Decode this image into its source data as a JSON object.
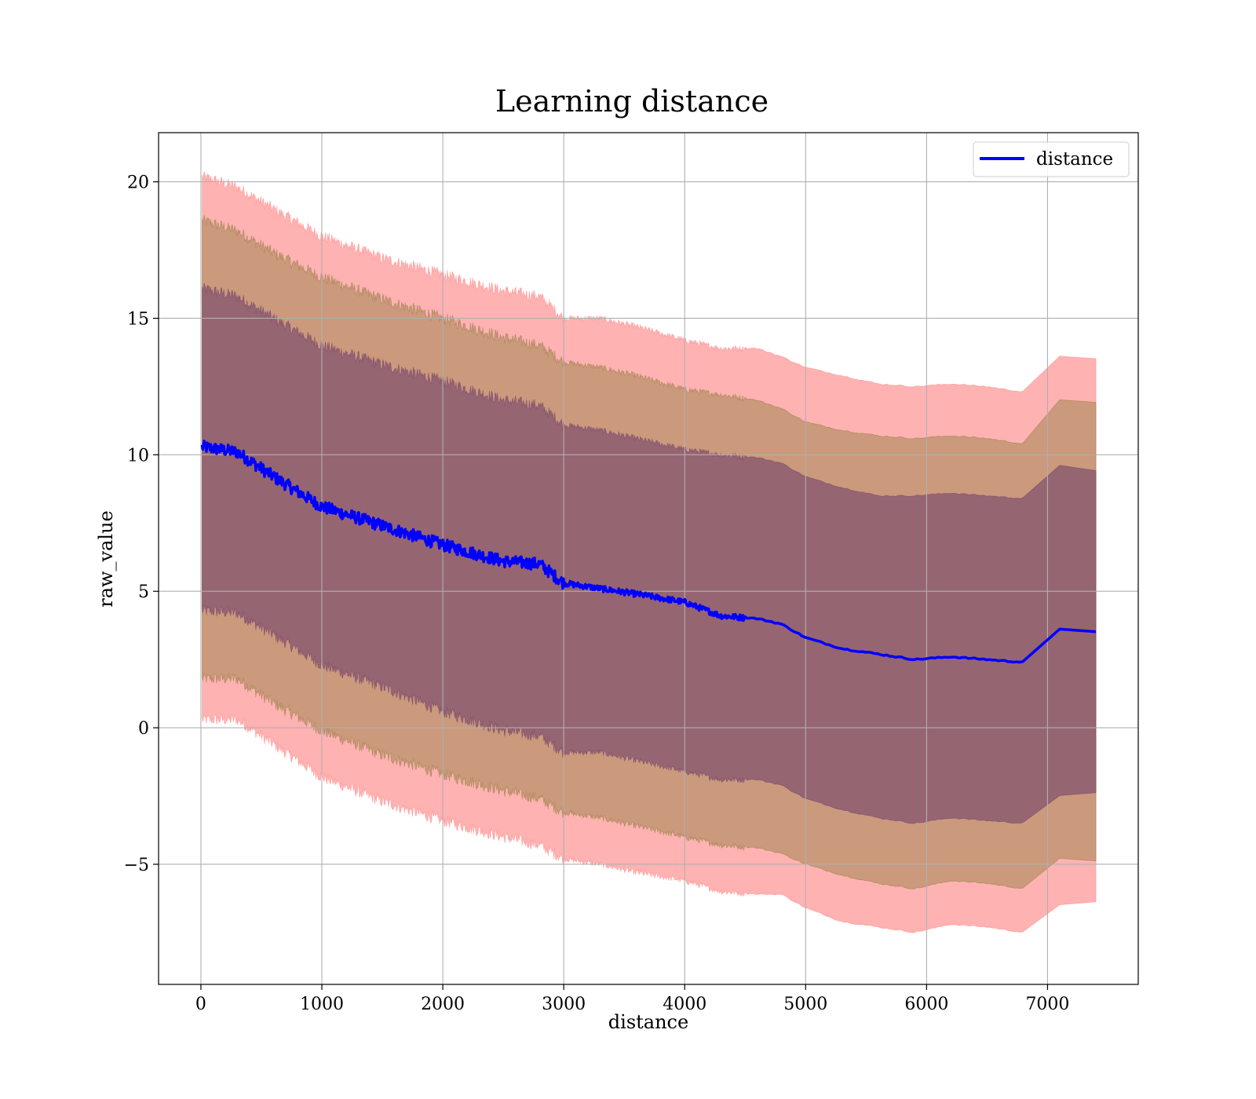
{
  "chart_data": {
    "type": "area",
    "title": "Learning distance",
    "xlabel": "distance",
    "ylabel": "raw_value",
    "xlim": [
      -350,
      7750
    ],
    "ylim": [
      -9.4,
      21.8
    ],
    "grid": true,
    "legend": {
      "placement": "top-right",
      "entries": [
        "distance"
      ]
    },
    "x_ticks": [
      0,
      1000,
      2000,
      3000,
      4000,
      5000,
      6000,
      7000
    ],
    "x_tick_labels": [
      "0",
      "1000",
      "2000",
      "3000",
      "4000",
      "5000",
      "6000",
      "7000"
    ],
    "y_ticks": [
      -5,
      0,
      5,
      10,
      15,
      20
    ],
    "y_tick_labels": [
      "−5",
      "0",
      "5",
      "10",
      "15",
      "20"
    ],
    "colors": {
      "line": "#0000ff",
      "band_outer": "#ff7f7f",
      "band_middle": "#8b7a3a",
      "band_inner": "#6b3a6a"
    },
    "x": [
      0,
      300,
      600,
      1000,
      1500,
      2000,
      2500,
      2800,
      3000,
      3300,
      3600,
      4000,
      4300,
      4600,
      4800,
      5000,
      5300,
      5600,
      5900,
      6200,
      6500,
      6800,
      7100,
      7400
    ],
    "series": [
      {
        "name": "distance",
        "values": [
          10.3,
          10.1,
          9.2,
          8.1,
          7.4,
          6.7,
          6.1,
          6.0,
          5.3,
          5.1,
          4.9,
          4.6,
          4.1,
          4.0,
          3.8,
          3.3,
          2.9,
          2.7,
          2.5,
          2.6,
          2.5,
          2.4,
          3.6,
          3.5
        ]
      },
      {
        "name": "",
        "values": [
          20.2,
          19.8,
          19.0,
          18.0,
          17.2,
          16.6,
          16.0,
          15.8,
          15.0,
          15.0,
          14.7,
          14.2,
          13.9,
          13.9,
          13.6,
          13.2,
          12.9,
          12.6,
          12.5,
          12.6,
          12.5,
          12.3,
          13.6,
          13.5
        ]
      },
      {
        "name": "",
        "values": [
          18.6,
          18.2,
          17.4,
          16.5,
          15.7,
          15.0,
          14.3,
          14.0,
          13.4,
          13.2,
          12.9,
          12.4,
          12.2,
          12.0,
          11.7,
          11.2,
          10.9,
          10.7,
          10.6,
          10.7,
          10.6,
          10.4,
          12.0,
          11.9
        ]
      },
      {
        "name": "",
        "values": [
          16.1,
          15.8,
          15.0,
          14.0,
          13.3,
          12.7,
          12.0,
          11.8,
          11.1,
          10.9,
          10.6,
          10.2,
          10.0,
          9.9,
          9.7,
          9.2,
          8.8,
          8.5,
          8.5,
          8.6,
          8.5,
          8.4,
          9.6,
          9.4
        ]
      },
      {
        "name": "",
        "values": [
          4.3,
          4.2,
          3.4,
          2.3,
          1.5,
          0.6,
          -0.1,
          -0.3,
          -0.9,
          -0.9,
          -1.2,
          -1.6,
          -1.9,
          -1.9,
          -2.1,
          -2.6,
          -3.0,
          -3.3,
          -3.5,
          -3.3,
          -3.4,
          -3.5,
          -2.5,
          -2.4
        ]
      },
      {
        "name": "",
        "values": [
          1.8,
          1.8,
          0.9,
          -0.1,
          -1.0,
          -1.7,
          -2.3,
          -2.6,
          -3.1,
          -3.3,
          -3.6,
          -4.0,
          -4.3,
          -4.4,
          -4.6,
          -5.0,
          -5.4,
          -5.7,
          -5.9,
          -5.6,
          -5.7,
          -5.9,
          -4.8,
          -4.9
        ]
      },
      {
        "name": "",
        "values": [
          0.3,
          0.3,
          -0.6,
          -1.8,
          -2.7,
          -3.4,
          -4.0,
          -4.3,
          -4.8,
          -5.0,
          -5.3,
          -5.6,
          -6.0,
          -6.1,
          -6.1,
          -6.6,
          -7.1,
          -7.3,
          -7.5,
          -7.2,
          -7.3,
          -7.5,
          -6.5,
          -6.4
        ]
      }
    ]
  }
}
